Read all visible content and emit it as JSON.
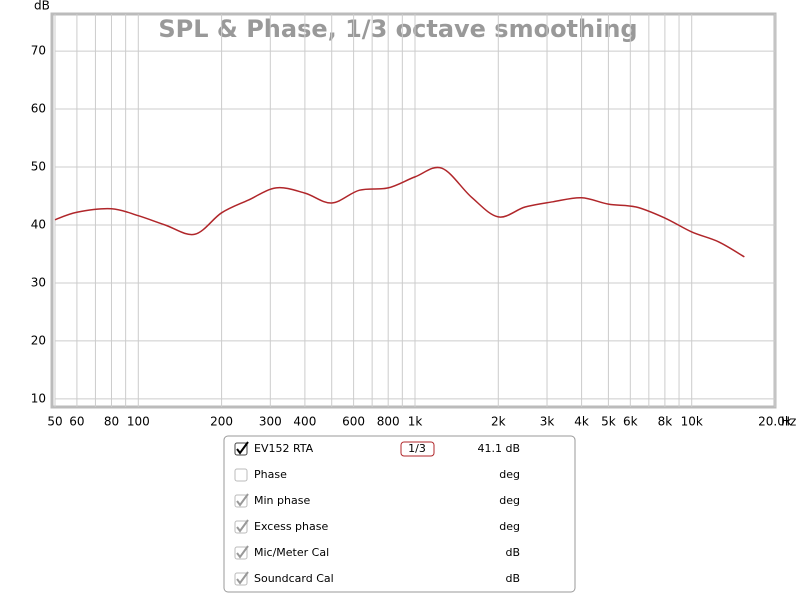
{
  "chart_data": {
    "type": "line",
    "title": "SPL & Phase, 1/3 octave smoothing",
    "y_label": "dB",
    "x_label": "Hz",
    "x": [
      50,
      60,
      80,
      100,
      125,
      160,
      200,
      250,
      315,
      400,
      500,
      630,
      800,
      1000,
      1250,
      1600,
      2000,
      2500,
      3150,
      4000,
      5000,
      6300,
      8000,
      10000,
      12500,
      15500
    ],
    "series": [
      {
        "name": "EV152 RTA",
        "color": "#b0262a",
        "values": [
          40.9,
          42.2,
          42.8,
          41.6,
          40.0,
          38.4,
          42.1,
          44.3,
          46.4,
          45.5,
          43.8,
          46.0,
          46.4,
          48.3,
          49.8,
          44.8,
          41.4,
          43.1,
          44.0,
          44.7,
          43.6,
          43.1,
          41.2,
          38.8,
          37.1,
          34.5
        ]
      }
    ],
    "xlog": true,
    "grid": true,
    "xlim": [
      50,
      20000
    ],
    "ylim": [
      8.6,
      76.4
    ],
    "xticks": [
      50,
      60,
      80,
      100,
      200,
      300,
      400,
      600,
      800,
      {
        "value": 1000,
        "label": "1k"
      },
      {
        "value": 2000,
        "label": "2k"
      },
      {
        "value": 3000,
        "label": "3k"
      },
      {
        "value": 4000,
        "label": "4k"
      },
      {
        "value": 5000,
        "label": "5k"
      },
      {
        "value": 6000,
        "label": "6k"
      },
      {
        "value": 8000,
        "label": "8k"
      },
      {
        "value": 10000,
        "label": "10k"
      },
      {
        "value": 20000,
        "label": "20.0k"
      }
    ],
    "xminor": [
      70,
      90,
      500,
      700,
      900,
      7000,
      9000
    ],
    "yticks": [
      10,
      20,
      30,
      40,
      50,
      60,
      70
    ]
  },
  "panel": {
    "rows": [
      {
        "label": "EV152 RTA",
        "checked": true,
        "active": true,
        "smoothing": "1/3",
        "unit": "41.1 dB"
      },
      {
        "label": "Phase",
        "checked": false,
        "active": false,
        "unit": "deg"
      },
      {
        "label": "Min phase",
        "checked": true,
        "active": false,
        "unit": "deg"
      },
      {
        "label": "Excess phase",
        "checked": true,
        "active": false,
        "unit": "deg"
      },
      {
        "label": "Mic/Meter Cal",
        "checked": true,
        "active": false,
        "unit": "dB"
      },
      {
        "label": "Soundcard Cal",
        "checked": true,
        "active": false,
        "unit": "dB"
      }
    ]
  }
}
